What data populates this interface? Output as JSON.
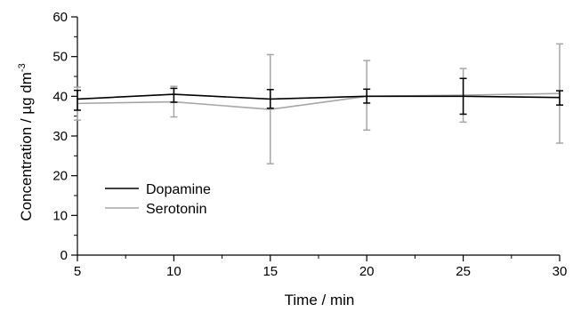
{
  "chart_data": {
    "type": "line",
    "xlabel": "Time / min",
    "ylabel": "Concentration / µg dm",
    "ylabel_superscript": "-3",
    "xlim": [
      5,
      30
    ],
    "ylim": [
      0,
      60
    ],
    "x_ticks": [
      "5",
      "10",
      "15",
      "20",
      "25",
      "30"
    ],
    "y_ticks": [
      "0",
      "10",
      "20",
      "30",
      "40",
      "50",
      "60"
    ],
    "x": [
      5,
      10,
      15,
      20,
      25,
      30
    ],
    "grid": false,
    "legend_position": "bottom-left",
    "series": [
      {
        "name": "Dopamine",
        "color": "#000000",
        "values": [
          39.3,
          40.5,
          39.3,
          40.0,
          40.0,
          39.7
        ],
        "error_low": [
          36.5,
          38.5,
          37.0,
          38.3,
          35.5,
          37.8
        ],
        "error_high": [
          41.5,
          42.0,
          41.7,
          41.8,
          44.5,
          41.4
        ]
      },
      {
        "name": "Serotonin",
        "color": "#a6a6a6",
        "values": [
          38.2,
          38.6,
          36.7,
          40.0,
          40.3,
          40.7
        ],
        "error_low": [
          34.0,
          34.8,
          23.0,
          31.5,
          33.5,
          28.2
        ],
        "error_high": [
          42.3,
          42.5,
          50.5,
          49.0,
          47.0,
          53.2
        ]
      }
    ]
  }
}
